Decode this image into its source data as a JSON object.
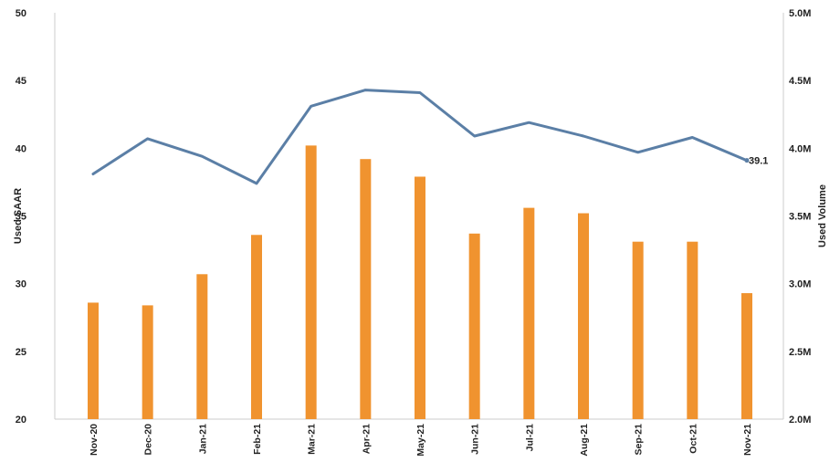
{
  "chart_data": {
    "type": "bar-line-combo",
    "categories": [
      "Nov-20",
      "Dec-20",
      "Jan-21",
      "Feb-21",
      "Mar-21",
      "Apr-21",
      "May-21",
      "Jun-21",
      "Jul-21",
      "Aug-21",
      "Sep-21",
      "Oct-21",
      "Nov-21"
    ],
    "series": [
      {
        "name": "Used Volume",
        "type": "bar",
        "axis": "right",
        "color": "#F0932F",
        "values": [
          2.86,
          2.84,
          3.07,
          3.36,
          4.02,
          3.92,
          3.79,
          3.37,
          3.56,
          3.52,
          3.31,
          3.31,
          2.93
        ]
      },
      {
        "name": "Used SAAR",
        "type": "line",
        "axis": "left",
        "color": "#5B7FA6",
        "values": [
          38.1,
          40.7,
          39.4,
          37.4,
          43.1,
          44.3,
          44.1,
          40.9,
          41.9,
          40.9,
          39.7,
          40.8,
          39.1
        ]
      }
    ],
    "data_labels": [
      {
        "series": "Used SAAR",
        "category": "Nov-21",
        "text": "39.1"
      }
    ],
    "left_axis": {
      "label": "Used SAAR",
      "range": [
        20,
        50
      ],
      "ticks": [
        20,
        25,
        30,
        35,
        40,
        45,
        50
      ],
      "tick_labels": [
        "20",
        "25",
        "30",
        "35",
        "40",
        "45",
        "50"
      ]
    },
    "right_axis": {
      "label": "Used Volume",
      "range": [
        2.0,
        5.0
      ],
      "ticks": [
        2.0,
        2.5,
        3.0,
        3.5,
        4.0,
        4.5,
        5.0
      ],
      "tick_labels": [
        "2.0M",
        "2.5M",
        "3.0M",
        "3.5M",
        "4.0M",
        "4.5M",
        "5.0M"
      ]
    },
    "grid": false,
    "legend": "none"
  }
}
